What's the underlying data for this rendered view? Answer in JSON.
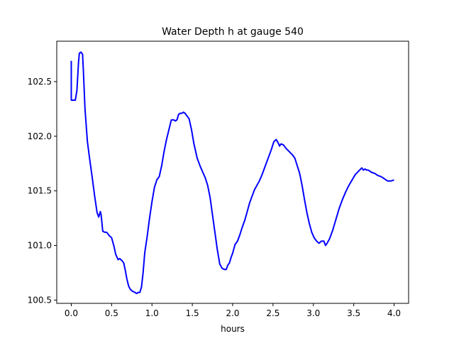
{
  "chart_data": {
    "type": "line",
    "title": "Water Depth h at gauge 540",
    "xlabel": "hours",
    "ylabel": "",
    "xlim": [
      -0.18,
      4.18
    ],
    "ylim": [
      100.47,
      102.87
    ],
    "grid": false,
    "legend": "none",
    "x_ticks": [
      0.0,
      0.5,
      1.0,
      1.5,
      2.0,
      2.5,
      3.0,
      3.5,
      4.0
    ],
    "x_tick_labels": [
      "0.0",
      "0.5",
      "1.0",
      "1.5",
      "2.0",
      "2.5",
      "3.0",
      "3.5",
      "4.0"
    ],
    "y_ticks": [
      100.5,
      101.0,
      101.5,
      102.0,
      102.5
    ],
    "y_tick_labels": [
      "100.5",
      "101.0",
      "101.5",
      "102.0",
      "102.5"
    ],
    "series": [
      {
        "color": "#0000ff",
        "x": [
          0.0,
          0.0,
          0.02,
          0.05,
          0.07,
          0.09,
          0.1,
          0.12,
          0.14,
          0.15,
          0.17,
          0.2,
          0.23,
          0.26,
          0.29,
          0.32,
          0.34,
          0.36,
          0.37,
          0.39,
          0.42,
          0.44,
          0.47,
          0.5,
          0.53,
          0.55,
          0.58,
          0.6,
          0.63,
          0.65,
          0.67,
          0.69,
          0.71,
          0.73,
          0.76,
          0.79,
          0.81,
          0.83,
          0.85,
          0.87,
          0.89,
          0.91,
          0.94,
          0.97,
          1.0,
          1.03,
          1.06,
          1.09,
          1.12,
          1.15,
          1.18,
          1.21,
          1.24,
          1.27,
          1.29,
          1.31,
          1.33,
          1.35,
          1.37,
          1.39,
          1.41,
          1.43,
          1.46,
          1.49,
          1.52,
          1.56,
          1.6,
          1.63,
          1.66,
          1.69,
          1.72,
          1.75,
          1.78,
          1.81,
          1.84,
          1.87,
          1.9,
          1.92,
          1.94,
          1.96,
          1.98,
          2.0,
          2.03,
          2.06,
          2.09,
          2.12,
          2.15,
          2.18,
          2.21,
          2.24,
          2.27,
          2.3,
          2.33,
          2.36,
          2.39,
          2.42,
          2.45,
          2.48,
          2.51,
          2.54,
          2.57,
          2.58,
          2.6,
          2.63,
          2.66,
          2.7,
          2.74,
          2.77,
          2.8,
          2.83,
          2.86,
          2.89,
          2.92,
          2.95,
          2.98,
          3.01,
          3.04,
          3.07,
          3.1,
          3.13,
          3.15,
          3.17,
          3.2,
          3.24,
          3.28,
          3.32,
          3.36,
          3.4,
          3.44,
          3.48,
          3.52,
          3.56,
          3.6,
          3.62,
          3.64,
          3.66,
          3.68,
          3.72,
          3.76,
          3.8,
          3.84,
          3.88,
          3.92,
          3.96,
          4.0
        ],
        "y": [
          102.69,
          102.33,
          102.33,
          102.33,
          102.42,
          102.68,
          102.76,
          102.77,
          102.75,
          102.6,
          102.25,
          101.95,
          101.78,
          101.62,
          101.45,
          101.3,
          101.26,
          101.31,
          101.28,
          101.13,
          101.12,
          101.12,
          101.09,
          101.07,
          100.99,
          100.92,
          100.87,
          100.88,
          100.86,
          100.84,
          100.77,
          100.69,
          100.63,
          100.6,
          100.58,
          100.57,
          100.56,
          100.57,
          100.57,
          100.62,
          100.75,
          100.93,
          101.08,
          101.25,
          101.4,
          101.53,
          101.6,
          101.63,
          101.73,
          101.86,
          101.97,
          102.06,
          102.15,
          102.15,
          102.14,
          102.15,
          102.2,
          102.21,
          102.21,
          102.22,
          102.21,
          102.19,
          102.16,
          102.06,
          101.93,
          101.8,
          101.72,
          101.67,
          101.62,
          101.55,
          101.44,
          101.28,
          101.12,
          100.96,
          100.83,
          100.79,
          100.78,
          100.78,
          100.82,
          100.84,
          100.89,
          100.93,
          101.01,
          101.04,
          101.1,
          101.17,
          101.23,
          101.31,
          101.39,
          101.45,
          101.51,
          101.55,
          101.59,
          101.64,
          101.7,
          101.76,
          101.82,
          101.88,
          101.95,
          101.97,
          101.93,
          101.91,
          101.93,
          101.92,
          101.89,
          101.86,
          101.83,
          101.8,
          101.73,
          101.66,
          101.55,
          101.42,
          101.3,
          101.2,
          101.12,
          101.07,
          101.04,
          101.02,
          101.04,
          101.04,
          101.0,
          101.02,
          101.06,
          101.14,
          101.24,
          101.34,
          101.42,
          101.49,
          101.55,
          101.6,
          101.65,
          101.68,
          101.71,
          101.69,
          101.7,
          101.69,
          101.69,
          101.67,
          101.66,
          101.64,
          101.63,
          101.61,
          101.59,
          101.59,
          101.6
        ]
      }
    ]
  }
}
